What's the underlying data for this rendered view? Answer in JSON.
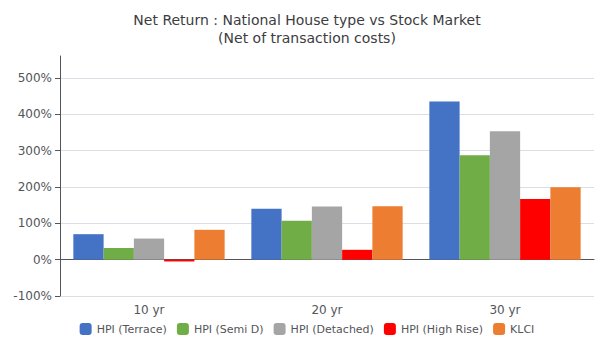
{
  "chart_data": {
    "type": "bar",
    "title": "Net Return : National House type vs Stock Market\n(Net of transaction costs)",
    "categories": [
      "10 yr",
      "20 yr",
      "30 yr"
    ],
    "series": [
      {
        "name": "HPI (Terrace)",
        "color": "#4472C4",
        "values": [
          0.7,
          1.4,
          4.35
        ]
      },
      {
        "name": "HPI (Semi D)",
        "color": "#70AD47",
        "values": [
          0.32,
          1.07,
          2.87
        ]
      },
      {
        "name": "HPI (Detached)",
        "color": "#A5A5A5",
        "values": [
          0.58,
          1.46,
          3.53
        ]
      },
      {
        "name": "HPI (High Rise)",
        "color": "#FF0000",
        "values": [
          -0.05,
          0.27,
          1.67
        ]
      },
      {
        "name": "KLCI",
        "color": "#ED7D31",
        "values": [
          0.82,
          1.47,
          1.99
        ]
      }
    ],
    "ylim": [
      -1.0,
      5.6
    ],
    "yticks": [
      {
        "value": -1.0,
        "label": "-100%"
      },
      {
        "value": 0.0,
        "label": "0%"
      },
      {
        "value": 1.0,
        "label": "100%"
      },
      {
        "value": 2.0,
        "label": "200%"
      },
      {
        "value": 3.0,
        "label": "300%"
      },
      {
        "value": 4.0,
        "label": "400%"
      },
      {
        "value": 5.0,
        "label": "500%"
      }
    ],
    "grid": true,
    "legend": "bottom"
  }
}
